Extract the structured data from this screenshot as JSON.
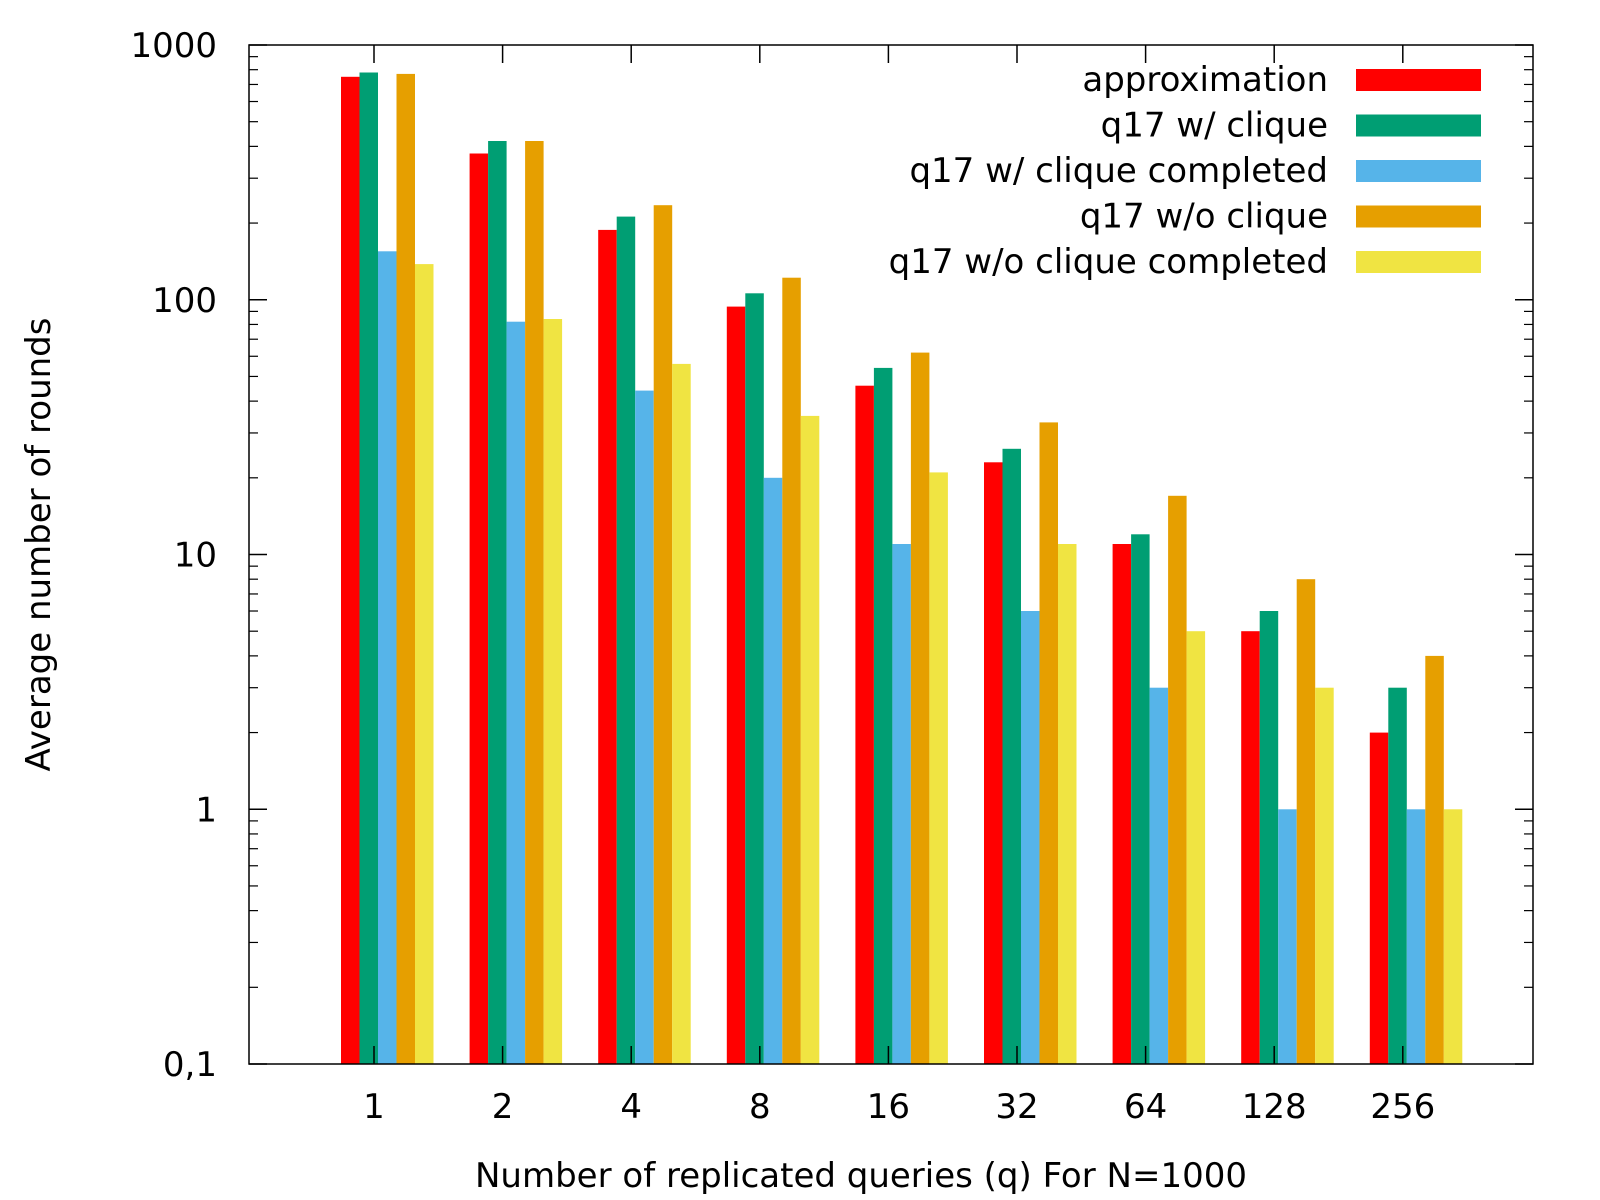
{
  "chart_data": {
    "type": "bar",
    "title": "",
    "xlabel": "Number of replicated queries (q) For N=1000",
    "ylabel": "Average number of rounds",
    "yscale": "log",
    "ylim": [
      0.1,
      1000
    ],
    "yticks": [
      {
        "value": 0.1,
        "label": "0,1"
      },
      {
        "value": 1,
        "label": "1"
      },
      {
        "value": 10,
        "label": "10"
      },
      {
        "value": 100,
        "label": "100"
      },
      {
        "value": 1000,
        "label": "1000"
      }
    ],
    "categories": [
      "1",
      "2",
      "4",
      "8",
      "16",
      "32",
      "64",
      "128",
      "256"
    ],
    "grid": false,
    "legend_position": "top-right",
    "series": [
      {
        "name": "approximation",
        "color": "#ff0000",
        "values": [
          750,
          375,
          188,
          94,
          46,
          23,
          11,
          5,
          2
        ]
      },
      {
        "name": "q17 w/ clique",
        "color": "#009e73",
        "values": [
          780,
          420,
          212,
          106,
          54,
          26,
          12,
          6,
          3
        ]
      },
      {
        "name": "q17 w/ clique completed",
        "color": "#56b4e9",
        "values": [
          155,
          82,
          44,
          20,
          11,
          6,
          3,
          1,
          1
        ]
      },
      {
        "name": "q17 w/o clique",
        "color": "#e69f00",
        "values": [
          770,
          420,
          235,
          122,
          62,
          33,
          17,
          8,
          4
        ]
      },
      {
        "name": "q17 w/o clique completed",
        "color": "#f0e442",
        "values": [
          138,
          84,
          56,
          35,
          21,
          11,
          5,
          3,
          1
        ]
      }
    ]
  }
}
